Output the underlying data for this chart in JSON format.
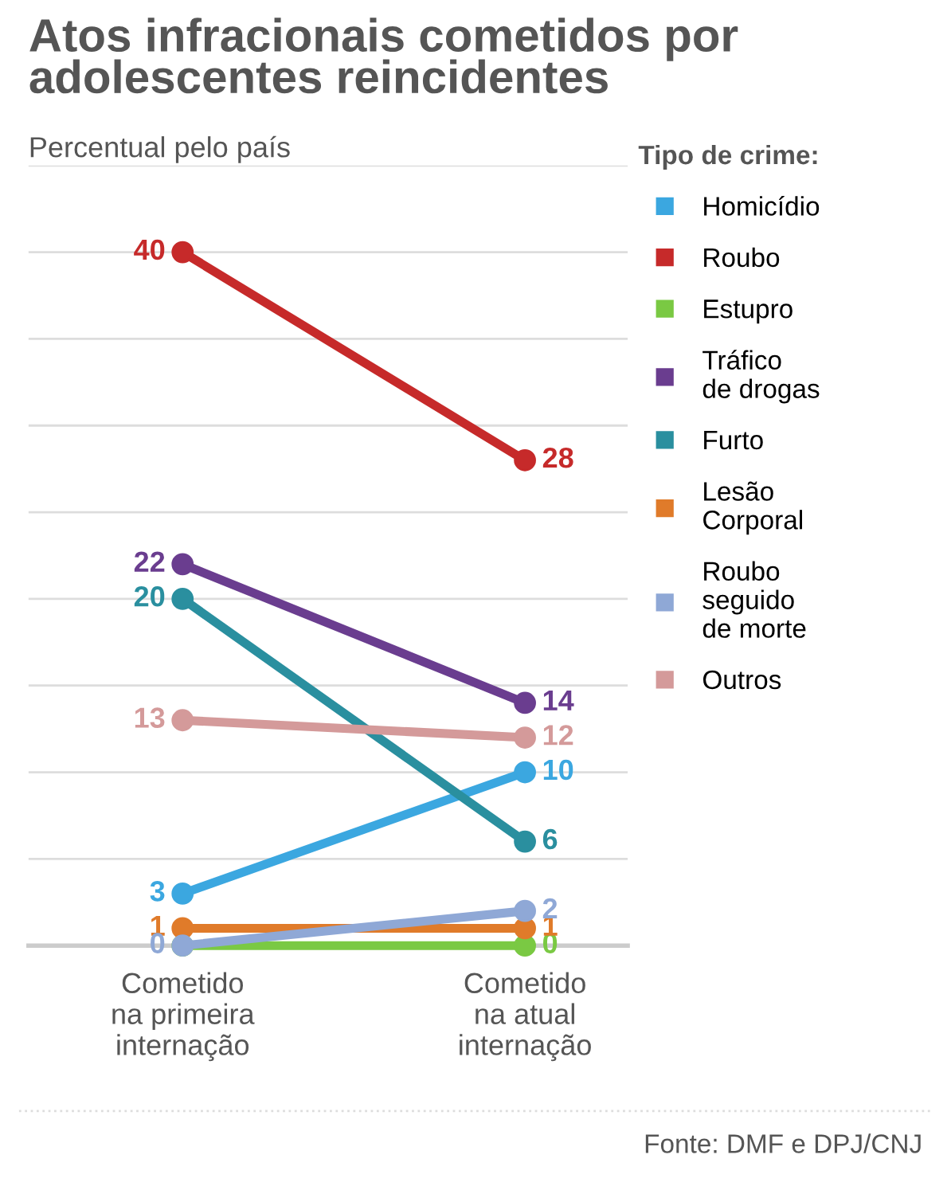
{
  "chart_data": {
    "type": "line",
    "title": "Atos infracionais cometidos por\nadolescentes reincidentes",
    "subtitle": "Percentual pelo país",
    "legend_title": "Tipo de crime:",
    "categories": [
      "Cometido\nna primeira\ninternação",
      "Cometido\nna atual\ninternação"
    ],
    "series": [
      {
        "name": "Homicídio",
        "color": "#3ba7e0",
        "values": [
          3,
          10
        ],
        "value_labels": [
          "3",
          "10"
        ]
      },
      {
        "name": "Roubo",
        "color": "#c62a2a",
        "values": [
          40,
          28
        ],
        "value_labels": [
          "40",
          "28"
        ]
      },
      {
        "name": "Estupro",
        "color": "#7ac943",
        "values": [
          0,
          0
        ],
        "value_labels": [
          null,
          "0"
        ]
      },
      {
        "name": "Tráfico\nde drogas",
        "color": "#6a3d8f",
        "values": [
          22,
          14
        ],
        "value_labels": [
          "22",
          "14"
        ]
      },
      {
        "name": "Furto",
        "color": "#2a8f9f",
        "values": [
          20,
          6
        ],
        "value_labels": [
          "20",
          "6"
        ]
      },
      {
        "name": "Lesão\nCorporal",
        "color": "#e07b2a",
        "values": [
          1,
          1
        ],
        "value_labels": [
          "1",
          "1"
        ]
      },
      {
        "name": "Roubo\nseguido\nde morte",
        "color": "#8fa8d6",
        "values": [
          0,
          2
        ],
        "value_labels": [
          "0",
          "2"
        ]
      },
      {
        "name": "Outros",
        "color": "#d49a9a",
        "values": [
          13,
          12
        ],
        "value_labels": [
          "13",
          "12"
        ]
      }
    ],
    "ylim": [
      0,
      45
    ],
    "yticks": [
      {
        "value": 0,
        "label": null
      },
      {
        "value": 5,
        "label": null
      },
      {
        "value": 10,
        "label": null
      },
      {
        "value": 15,
        "label": null
      },
      {
        "value": 20,
        "label": null
      },
      {
        "value": 25,
        "label": null
      },
      {
        "value": 30,
        "label": null
      },
      {
        "value": 35,
        "label": null
      },
      {
        "value": 40,
        "label": null
      },
      {
        "value": 45,
        "label": null
      }
    ],
    "grid": "y",
    "legend": "right",
    "marker": "circle",
    "line_style": "solid",
    "tick_labels": "x",
    "annotations": [
      "Fonte: DMF e DPJ/CNJ"
    ]
  }
}
